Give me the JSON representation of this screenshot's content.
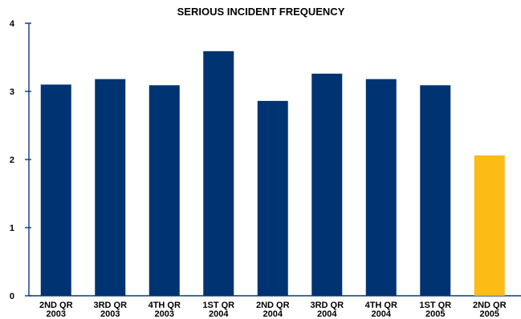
{
  "chart_data": {
    "type": "bar",
    "title": "SERIOUS INCIDENT FREQUENCY",
    "xlabel": "",
    "ylabel": "",
    "categories": [
      [
        "2ND QR",
        "2003"
      ],
      [
        "3RD QR",
        "2003"
      ],
      [
        "4TH QR",
        "2003"
      ],
      [
        "1ST QR",
        "2004"
      ],
      [
        "2ND QR",
        "2004"
      ],
      [
        "3RD QR",
        "2004"
      ],
      [
        "4TH QR",
        "2004"
      ],
      [
        "1ST QR",
        "2005"
      ],
      [
        "2ND QR",
        "2005"
      ]
    ],
    "values": [
      3.1,
      3.18,
      3.09,
      3.59,
      2.86,
      3.26,
      3.18,
      3.09,
      2.06
    ],
    "bar_colors": [
      "#003371",
      "#003371",
      "#003371",
      "#003371",
      "#003371",
      "#003371",
      "#003371",
      "#003371",
      "#FDBB16"
    ],
    "ylim": [
      0,
      4
    ],
    "yticks": [
      0,
      1,
      2,
      3,
      4
    ],
    "ytick_labels": [
      "0",
      "1",
      "2",
      "3",
      "4"
    ],
    "grid": false,
    "legend": "none"
  },
  "colors": {
    "primary_bar": "#003371",
    "highlight_bar": "#FDBB16",
    "axis": "#0B3A7A"
  }
}
